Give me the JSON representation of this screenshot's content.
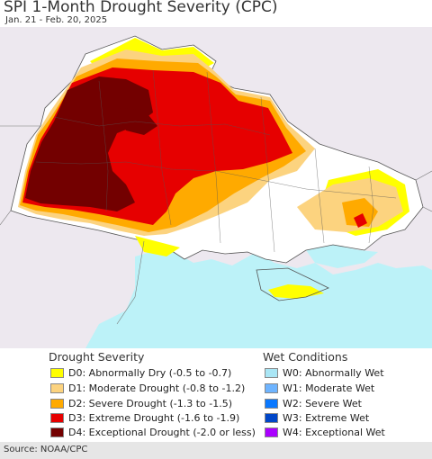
{
  "header": {
    "title": "SPI 1-Month Drought Severity (CPC)",
    "subtitle": "Jan. 21 - Feb. 20, 2025"
  },
  "legend": {
    "drought": {
      "title": "Drought Severity",
      "items": [
        {
          "label": "D0: Abnormally Dry (-0.5 to -0.7)",
          "color": "#ffff00"
        },
        {
          "label": "D1: Moderate Drought (-0.8 to -1.2)",
          "color": "#fcd37f"
        },
        {
          "label": "D2: Severe Drought (-1.3 to -1.5)",
          "color": "#ffaa00"
        },
        {
          "label": "D3: Extreme Drought (-1.6 to -1.9)",
          "color": "#e60000"
        },
        {
          "label": "D4: Exceptional Drought (-2.0 or less)",
          "color": "#730000"
        }
      ]
    },
    "wet": {
      "title": "Wet Conditions",
      "items": [
        {
          "label": "W0: Abnormally Wet",
          "color": "#aae6f5"
        },
        {
          "label": "W1: Moderate Wet",
          "color": "#6eb4ff"
        },
        {
          "label": "W2: Severe Wet",
          "color": "#0a78ff"
        },
        {
          "label": "W3: Extreme Wet",
          "color": "#0046c8"
        },
        {
          "label": "W4: Exceptional Wet",
          "color": "#aa00ff"
        }
      ]
    }
  },
  "footer": {
    "source": "Source: NOAA/CPC"
  }
}
